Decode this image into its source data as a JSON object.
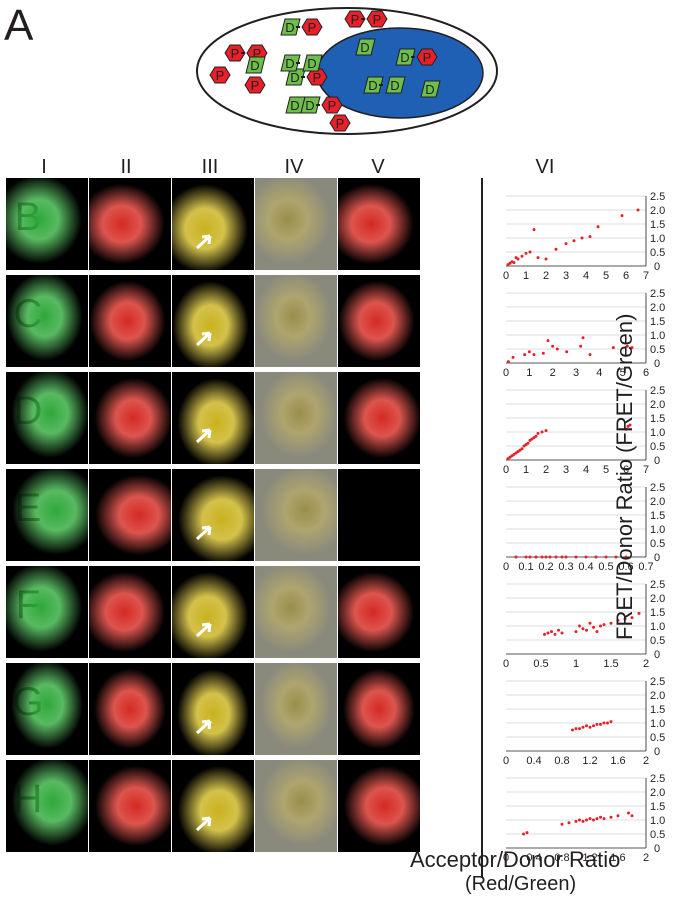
{
  "panel_label": "A",
  "diagram": {
    "chips": [
      [
        "D",
        "P"
      ],
      [
        "P",
        "P"
      ],
      [
        "P",
        "P"
      ],
      [
        "P"
      ],
      [
        "P"
      ],
      [
        "D"
      ],
      [
        "D",
        "P"
      ],
      [
        "D",
        "D"
      ],
      [
        "D"
      ],
      [
        "D",
        "P"
      ],
      [
        "P"
      ],
      [
        "D"
      ],
      [
        "D",
        "P"
      ],
      [
        "D",
        "D"
      ],
      [
        "D"
      ]
    ]
  },
  "column_headers": [
    "I",
    "II",
    "III",
    "IV",
    "V",
    "VI"
  ],
  "row_labels": [
    "B",
    "C",
    "D",
    "E",
    "F",
    "G",
    "H"
  ],
  "y_axis_label": "FRET/Donor Ratio (FRET/Green)",
  "x_axis_label_line1": "Acceptor/Donor Ratio",
  "x_axis_label_line2": "(Red/Green)",
  "chart_data": [
    {
      "type": "scatter",
      "row": "B",
      "xlim": [
        0,
        7
      ],
      "ylim": [
        0,
        2
      ],
      "xticks": [
        "0",
        "1",
        "2",
        "3",
        "4",
        "5",
        "6",
        "7"
      ],
      "yticks": [
        "0.5",
        "1.0",
        "1.5",
        "2.0",
        "2.5"
      ],
      "points": [
        [
          0.1,
          0.05
        ],
        [
          0.2,
          0.1
        ],
        [
          0.3,
          0.15
        ],
        [
          0.4,
          0.12
        ],
        [
          0.5,
          0.3
        ],
        [
          0.6,
          0.25
        ],
        [
          0.8,
          0.35
        ],
        [
          1.0,
          0.45
        ],
        [
          1.2,
          0.5
        ],
        [
          1.4,
          1.3
        ],
        [
          1.6,
          0.3
        ],
        [
          2.0,
          0.25
        ],
        [
          2.5,
          0.6
        ],
        [
          3.0,
          0.8
        ],
        [
          3.4,
          0.9
        ],
        [
          3.8,
          1.0
        ],
        [
          4.2,
          1.05
        ],
        [
          4.6,
          1.4
        ],
        [
          5.8,
          1.8
        ],
        [
          6.6,
          2.0
        ]
      ]
    },
    {
      "type": "scatter",
      "row": "C",
      "xlim": [
        0,
        6
      ],
      "ylim": [
        0,
        2
      ],
      "xticks": [
        "0",
        "1",
        "2",
        "3",
        "4",
        "5",
        "6"
      ],
      "yticks": [
        "0.5",
        "1.0",
        "1.5",
        "2.0",
        "2.5"
      ],
      "points": [
        [
          0.1,
          0.05
        ],
        [
          0.3,
          0.2
        ],
        [
          0.8,
          0.3
        ],
        [
          1.0,
          0.4
        ],
        [
          1.2,
          0.3
        ],
        [
          1.6,
          0.35
        ],
        [
          1.8,
          0.8
        ],
        [
          2.0,
          0.6
        ],
        [
          2.2,
          0.5
        ],
        [
          2.6,
          0.4
        ],
        [
          3.2,
          0.6
        ],
        [
          3.3,
          0.9
        ],
        [
          3.6,
          0.3
        ],
        [
          4.6,
          0.55
        ],
        [
          5.2,
          0.6
        ],
        [
          5.4,
          0.55
        ]
      ]
    },
    {
      "type": "scatter",
      "row": "D",
      "xlim": [
        0,
        7
      ],
      "ylim": [
        0,
        2
      ],
      "xticks": [
        "0",
        "1",
        "2",
        "3",
        "4",
        "5",
        "6",
        "7"
      ],
      "yticks": [
        "0.5",
        "1.0",
        "1.5",
        "2.0",
        "2.5"
      ],
      "points": [
        [
          0.1,
          0.05
        ],
        [
          0.2,
          0.1
        ],
        [
          0.3,
          0.15
        ],
        [
          0.4,
          0.2
        ],
        [
          0.5,
          0.25
        ],
        [
          0.6,
          0.3
        ],
        [
          0.7,
          0.35
        ],
        [
          0.8,
          0.4
        ],
        [
          0.9,
          0.5
        ],
        [
          1.0,
          0.55
        ],
        [
          1.1,
          0.6
        ],
        [
          1.2,
          0.7
        ],
        [
          1.3,
          0.75
        ],
        [
          1.4,
          0.8
        ],
        [
          1.5,
          0.85
        ],
        [
          1.6,
          0.95
        ],
        [
          1.8,
          1.0
        ],
        [
          2.0,
          1.05
        ],
        [
          6.0,
          1.1
        ],
        [
          6.1,
          1.2
        ],
        [
          6.2,
          1.25
        ]
      ]
    },
    {
      "type": "scatter",
      "row": "E",
      "xlim": [
        0,
        0.7
      ],
      "ylim": [
        0,
        2
      ],
      "xticks": [
        "0",
        "0.1",
        "0.2",
        "0.3",
        "0.4",
        "0.5",
        "0.6",
        "0.7"
      ],
      "yticks": [
        "0.5",
        "1.0",
        "1.5",
        "2.0",
        "2.5"
      ],
      "points": [
        [
          0.05,
          0
        ],
        [
          0.1,
          0
        ],
        [
          0.12,
          0
        ],
        [
          0.15,
          0
        ],
        [
          0.18,
          0
        ],
        [
          0.2,
          0
        ],
        [
          0.22,
          0
        ],
        [
          0.25,
          0
        ],
        [
          0.28,
          0
        ],
        [
          0.3,
          0
        ],
        [
          0.35,
          0
        ],
        [
          0.4,
          0
        ],
        [
          0.45,
          0
        ],
        [
          0.5,
          0
        ],
        [
          0.55,
          0
        ],
        [
          0.6,
          0
        ]
      ]
    },
    {
      "type": "scatter",
      "row": "F",
      "xlim": [
        0,
        2
      ],
      "ylim": [
        0,
        2
      ],
      "xticks": [
        "0",
        "0.5",
        "1",
        "1.5",
        "2"
      ],
      "yticks": [
        "0.5",
        "1.0",
        "1.5",
        "2.0",
        "2.5"
      ],
      "points": [
        [
          0.55,
          0.7
        ],
        [
          0.6,
          0.75
        ],
        [
          0.65,
          0.8
        ],
        [
          0.7,
          0.7
        ],
        [
          0.75,
          0.85
        ],
        [
          0.8,
          0.75
        ],
        [
          1.0,
          0.8
        ],
        [
          1.05,
          1.0
        ],
        [
          1.1,
          0.9
        ],
        [
          1.15,
          0.85
        ],
        [
          1.2,
          1.1
        ],
        [
          1.25,
          0.95
        ],
        [
          1.3,
          0.8
        ],
        [
          1.35,
          1.0
        ],
        [
          1.4,
          1.05
        ],
        [
          1.5,
          1.1
        ],
        [
          1.6,
          1.2
        ],
        [
          1.7,
          1.25
        ],
        [
          1.8,
          1.3
        ],
        [
          1.9,
          1.45
        ]
      ]
    },
    {
      "type": "scatter",
      "row": "G",
      "xlim": [
        0,
        2
      ],
      "ylim": [
        0,
        2
      ],
      "xticks": [
        "0",
        "0.4",
        "0.8",
        "1.2",
        "1.6",
        "2"
      ],
      "yticks": [
        "0.5",
        "1.0",
        "1.5",
        "2.0",
        "2.5"
      ],
      "points": [
        [
          0.95,
          0.75
        ],
        [
          1.0,
          0.8
        ],
        [
          1.05,
          0.8
        ],
        [
          1.1,
          0.85
        ],
        [
          1.15,
          0.9
        ],
        [
          1.2,
          0.85
        ],
        [
          1.25,
          0.9
        ],
        [
          1.3,
          0.95
        ],
        [
          1.35,
          0.95
        ],
        [
          1.4,
          1.0
        ],
        [
          1.45,
          1.0
        ],
        [
          1.5,
          1.05
        ]
      ]
    },
    {
      "type": "scatter",
      "row": "H",
      "xlim": [
        0,
        2
      ],
      "ylim": [
        0,
        2
      ],
      "xticks": [
        "0",
        "0.4",
        "0.8",
        "1.2",
        "1.6",
        "2"
      ],
      "yticks": [
        "0.5",
        "1.0",
        "1.5",
        "2.0",
        "2.5"
      ],
      "points": [
        [
          0.25,
          0.5
        ],
        [
          0.3,
          0.55
        ],
        [
          0.8,
          0.85
        ],
        [
          0.9,
          0.9
        ],
        [
          1.0,
          0.95
        ],
        [
          1.05,
          1.0
        ],
        [
          1.1,
          0.95
        ],
        [
          1.15,
          1.0
        ],
        [
          1.2,
          1.05
        ],
        [
          1.25,
          1.0
        ],
        [
          1.3,
          1.05
        ],
        [
          1.35,
          1.1
        ],
        [
          1.4,
          1.05
        ],
        [
          1.5,
          1.1
        ],
        [
          1.6,
          1.15
        ],
        [
          1.75,
          1.25
        ],
        [
          1.8,
          1.15
        ]
      ]
    }
  ],
  "colors": {
    "donor": "#6cbf4a",
    "acceptor": "#e8202a",
    "nucleus": "#1f5fb4",
    "point": "#e8202a"
  }
}
